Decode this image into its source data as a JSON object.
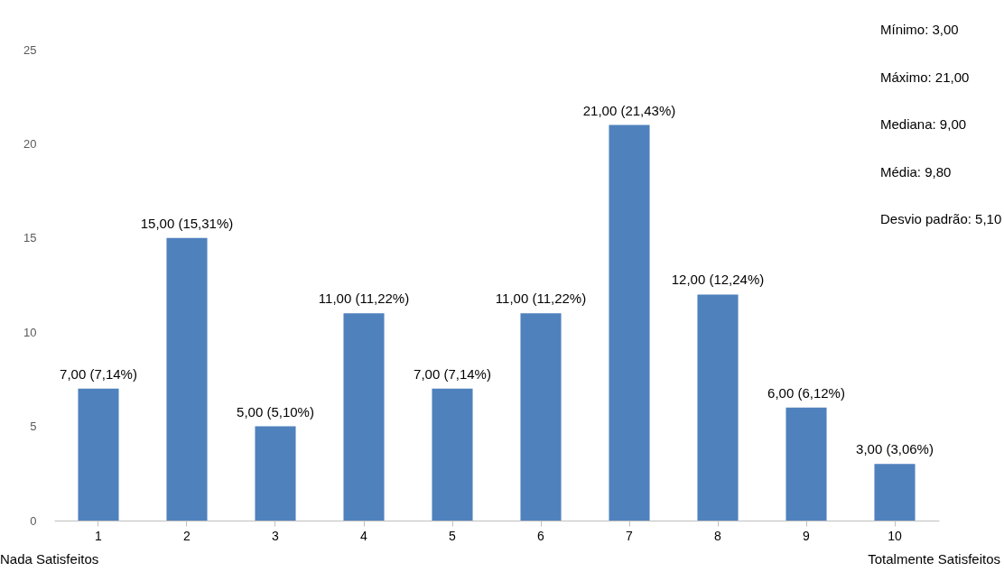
{
  "chart_data": {
    "type": "bar",
    "categories": [
      "1",
      "2",
      "3",
      "4",
      "5",
      "6",
      "7",
      "8",
      "9",
      "10"
    ],
    "values": [
      7,
      15,
      5,
      11,
      7,
      11,
      21,
      12,
      6,
      3
    ],
    "value_labels": [
      "7,00 (7,14%)",
      "15,00 (15,31%)",
      "5,00 (5,10%)",
      "11,00 (11,22%)",
      "7,00 (7,14%)",
      "11,00 (11,22%)",
      "21,00 (21,43%)",
      "12,00 (12,24%)",
      "6,00 (6,12%)",
      "3,00 (3,06%)"
    ],
    "color": "#4f81bd",
    "ylim": [
      0,
      25
    ],
    "yticks": [
      0,
      5,
      10,
      15,
      20,
      25
    ],
    "grid": false,
    "annotations": [
      "Nada Satisfeitos",
      "Totalmente Satisfeitos",
      "Mínimo: 3,00",
      "Máximo: 21,00",
      "Mediana: 9,00",
      "Média: 9,80",
      "Desvio padrão: 5,10"
    ]
  }
}
